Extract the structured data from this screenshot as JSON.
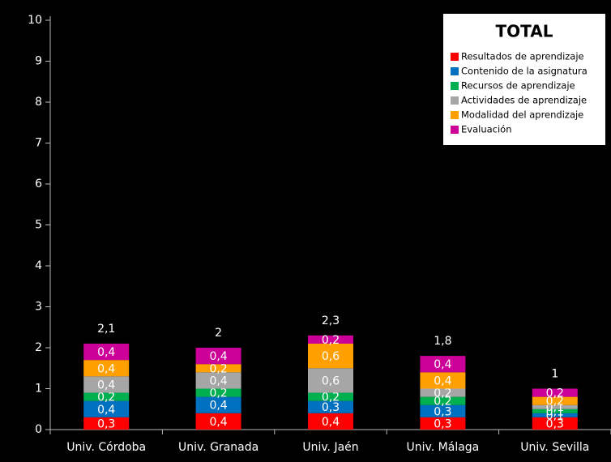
{
  "chart_data": {
    "type": "stacked_bar",
    "title": "TOTAL",
    "categories": [
      "Univ. Córdoba",
      "Univ. Granada",
      "Univ. Jaén",
      "Univ. Málaga",
      "Univ. Sevilla"
    ],
    "series": [
      {
        "name": "Resultados de aprendizaje",
        "color": "#ff0000",
        "values": [
          0.3,
          0.4,
          0.4,
          0.3,
          0.3
        ],
        "value_labels": [
          "0,3",
          "0,4",
          "0,4",
          "0,3",
          "0,3"
        ]
      },
      {
        "name": "Contenido de la asignatura",
        "color": "#0070c0",
        "values": [
          0.4,
          0.4,
          0.3,
          0.3,
          0.1
        ],
        "value_labels": [
          "0,4",
          "0,4",
          "0,3",
          "0,3",
          "0,1"
        ]
      },
      {
        "name": "Recursos de aprendizaje",
        "color": "#00b050",
        "values": [
          0.2,
          0.2,
          0.2,
          0.2,
          0.1
        ],
        "value_labels": [
          "0,2",
          "0,2",
          "0,2",
          "0,2",
          "0,1"
        ]
      },
      {
        "name": "Actividades de aprendizaje",
        "color": "#a6a6a6",
        "values": [
          0.4,
          0.4,
          0.6,
          0.2,
          0.1
        ],
        "value_labels": [
          "0,4",
          "0,4",
          "0,6",
          "0,2",
          "0,1"
        ]
      },
      {
        "name": "Modalidad del aprendizaje",
        "color": "#ffa000",
        "values": [
          0.4,
          0.2,
          0.6,
          0.4,
          0.2
        ],
        "value_labels": [
          "0,4",
          "0,2",
          "0,6",
          "0,4",
          "0,2"
        ]
      },
      {
        "name": "Evaluación",
        "color": "#cc0099",
        "values": [
          0.4,
          0.4,
          0.2,
          0.4,
          0.2
        ],
        "value_labels": [
          "0,4",
          "0,4",
          "0,2",
          "0,4",
          "0,2"
        ]
      }
    ],
    "totals": {
      "values": [
        2.1,
        2,
        2.3,
        1.8,
        1
      ],
      "value_labels": [
        "2,1",
        "2",
        "2,3",
        "1,8",
        "1"
      ]
    },
    "ylim": [
      0,
      10
    ],
    "yticks": [
      0,
      1,
      2,
      3,
      4,
      5,
      6,
      7,
      8,
      9,
      10
    ],
    "grid": false,
    "legend": "top-right"
  }
}
